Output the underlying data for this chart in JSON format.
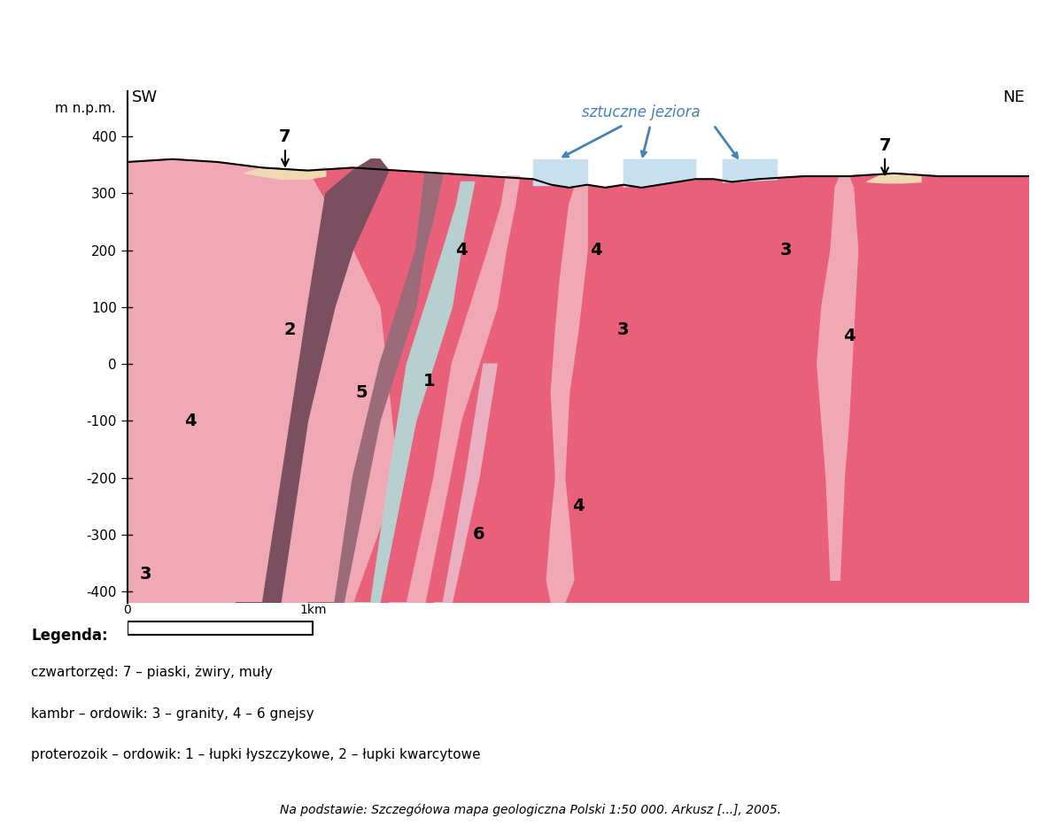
{
  "title": "",
  "sw_label": "SW",
  "ne_label": "NE",
  "ylabel": "m n.p.m.",
  "ylim": [
    -420,
    480
  ],
  "xlim": [
    0,
    10
  ],
  "yticks": [
    -400,
    -300,
    -200,
    -100,
    0,
    100,
    200,
    300,
    400
  ],
  "colors": {
    "color3_granite": "#e8607a",
    "color4_gneiss_light": "#f0b0b8",
    "color4_gneiss_pink": "#f0b0b8",
    "color5_purple": "#9b6b7a",
    "color2_darkpurple": "#7a5060",
    "color1_blue": "#b8cfd0",
    "color6_lightpink": "#e8b0c0",
    "color7_sand": "#f0d8b0",
    "color_lake": "#c8dff0",
    "background": "#ffffff"
  },
  "legend_title": "Legenda:",
  "legend_lines": [
    "czwartorzęd: 7 – piaski, żwiry, muły",
    "kambr – ordowik: 3 – granity, 4 – 6 gnejsy",
    "proterozoik – ordowik: 1 – łupki łyszczykowe, 2 – łupki kwarcytowe"
  ],
  "footnote": "Na podstawie: Szczegółowa mapa geologiczna Polski 1:50 000. Arkusz [...], 2005.",
  "sztuczne_jeziora": "sztuczne jeziora"
}
